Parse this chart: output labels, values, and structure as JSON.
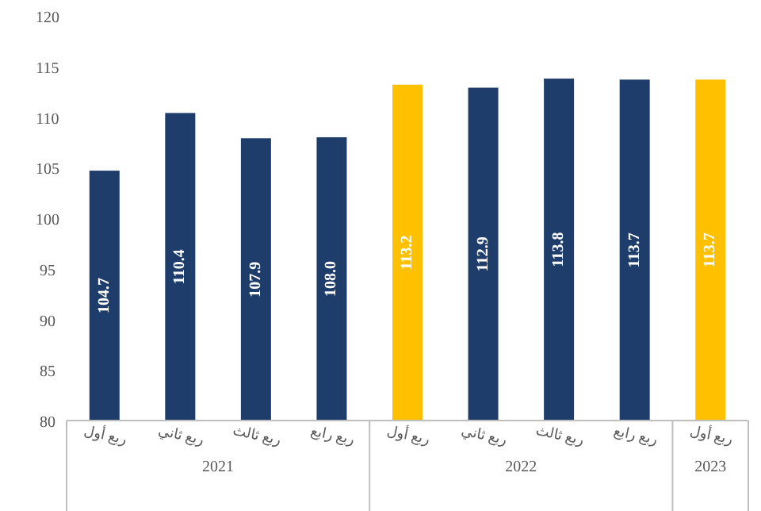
{
  "chart_data": {
    "type": "bar",
    "categories": [
      "ربع أول",
      "ربع ثاني",
      "ربع ثالث",
      "ربع رابع",
      "ربع أول",
      "ربع ثاني",
      "ربع ثالث",
      "ربع رابع",
      "ربع أول"
    ],
    "values": [
      104.7,
      110.4,
      107.9,
      108.0,
      113.2,
      112.9,
      113.8,
      113.7,
      113.7
    ],
    "value_labels": [
      "104.7",
      "110.4",
      "107.9",
      "108.0",
      "113.2",
      "112.9",
      "113.8",
      "113.7",
      "113.7"
    ],
    "colors": [
      "#1f3d6b",
      "#1f3d6b",
      "#1f3d6b",
      "#1f3d6b",
      "#ffc000",
      "#1f3d6b",
      "#1f3d6b",
      "#1f3d6b",
      "#ffc000"
    ],
    "ylim": [
      80,
      120
    ],
    "yticks": [
      80,
      85,
      90,
      95,
      100,
      105,
      110,
      115,
      120
    ],
    "grid": false,
    "annotations": [
      "2021",
      "2022",
      "2023"
    ]
  }
}
